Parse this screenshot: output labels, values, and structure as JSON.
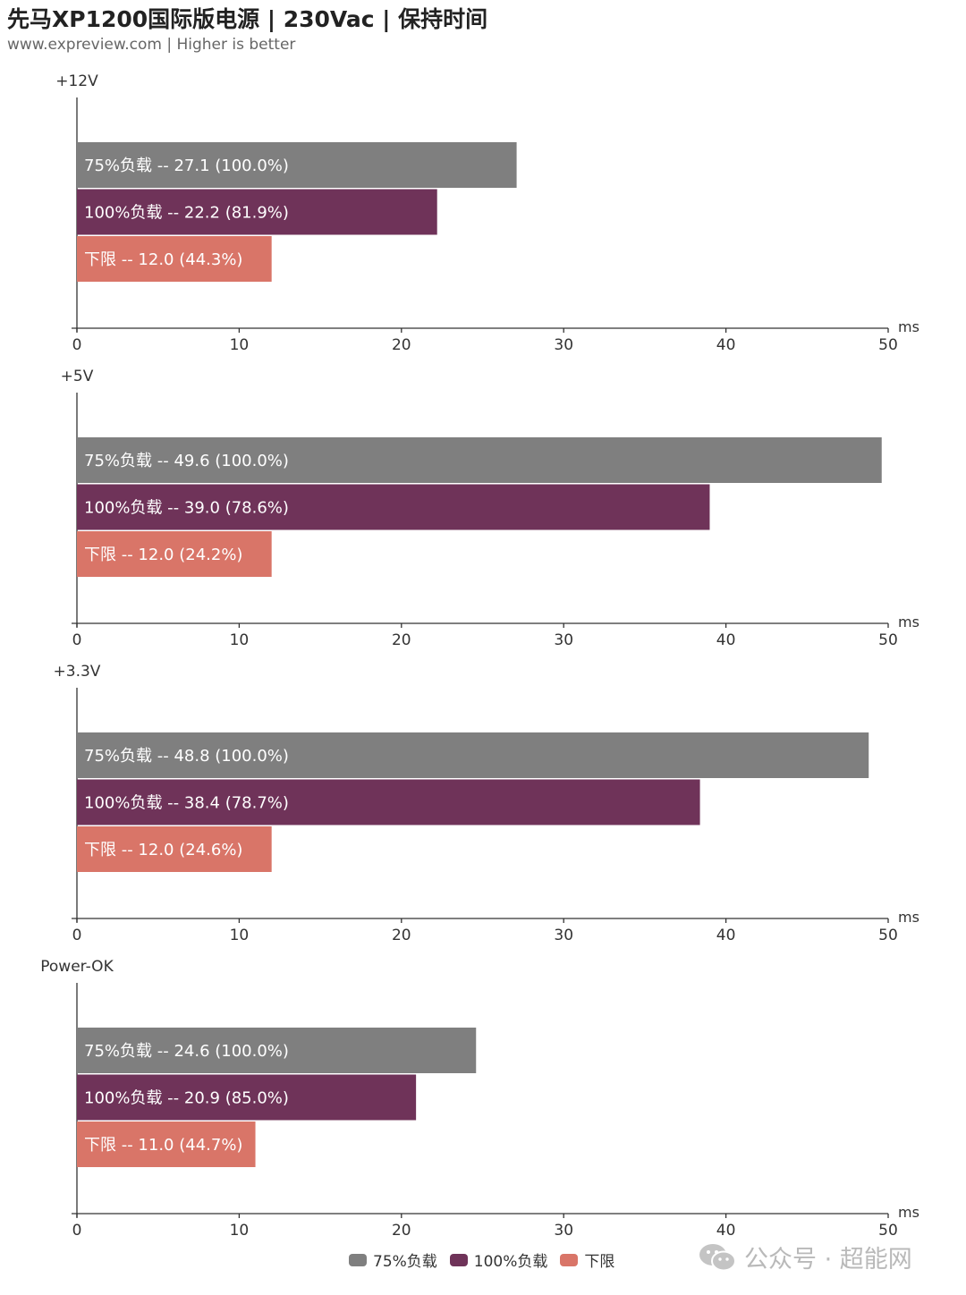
{
  "title": "先马XP1200国际版电源 | 230Vac | 保持时间",
  "subtitle": "www.expreview.com | Higher is better",
  "watermark": {
    "text": "公众号 · 超能网",
    "icon": "wechat-icon"
  },
  "colors": {
    "75%负载": "#7f7f7f",
    "100%负载": "#6f3359",
    "下限": "#d97568"
  },
  "chart_data": {
    "type": "bar",
    "orientation": "horizontal",
    "unit": "ms",
    "xlim": [
      0,
      50
    ],
    "ticks": [
      0,
      10,
      20,
      30,
      40,
      50
    ],
    "legend": [
      "75%负载",
      "100%负载",
      "下限"
    ],
    "legend_position": "bottom",
    "grid": false,
    "panels": [
      {
        "name": "+12V",
        "bars": [
          {
            "series": "75%负载",
            "value": 27.1,
            "label": "75%负载  --  27.1  (100.0%)"
          },
          {
            "series": "100%负载",
            "value": 22.2,
            "label": "100%负载  --  22.2  (81.9%)"
          },
          {
            "series": "下限",
            "value": 12.0,
            "label": "下限  --  12.0  (44.3%)"
          }
        ]
      },
      {
        "name": "+5V",
        "bars": [
          {
            "series": "75%负载",
            "value": 49.6,
            "label": "75%负载  --  49.6  (100.0%)"
          },
          {
            "series": "100%负载",
            "value": 39.0,
            "label": "100%负载  --  39.0  (78.6%)"
          },
          {
            "series": "下限",
            "value": 12.0,
            "label": "下限  --  12.0  (24.2%)"
          }
        ]
      },
      {
        "name": "+3.3V",
        "bars": [
          {
            "series": "75%负载",
            "value": 48.8,
            "label": "75%负载  --  48.8  (100.0%)"
          },
          {
            "series": "100%负载",
            "value": 38.4,
            "label": "100%负载  --  38.4  (78.7%)"
          },
          {
            "series": "下限",
            "value": 12.0,
            "label": "下限  --  12.0  (24.6%)"
          }
        ]
      },
      {
        "name": "Power-OK",
        "bars": [
          {
            "series": "75%负载",
            "value": 24.6,
            "label": "75%负载  --  24.6  (100.0%)"
          },
          {
            "series": "100%负载",
            "value": 20.9,
            "label": "100%负载  --  20.9  (85.0%)"
          },
          {
            "series": "下限",
            "value": 11.0,
            "label": "下限  --  11.0  (44.7%)"
          }
        ]
      }
    ]
  }
}
